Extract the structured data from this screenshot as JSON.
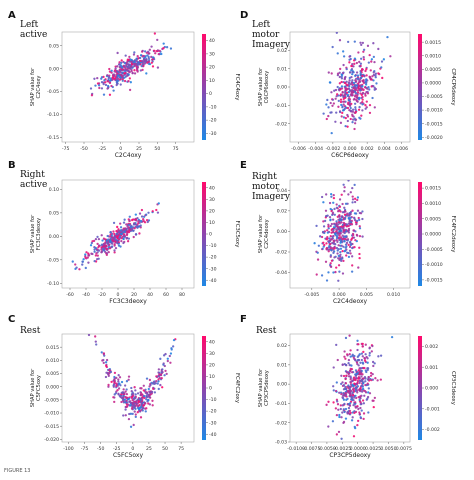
{
  "figure_footer": "FIGURE 13",
  "colormap": {
    "low": "#1e88e5",
    "mid": "#8e44ad",
    "high": "#ff0a6c"
  },
  "chart_data": [
    {
      "letter": "A",
      "title": [
        "Left",
        "active"
      ],
      "type": "scatter",
      "xlabel": "C2C4oxy",
      "ylabel": [
        "SHAP value for",
        "C2C4oxy"
      ],
      "clabel": "FC4C4oxy",
      "xlim": [
        -80,
        100
      ],
      "ylim": [
        -0.16,
        0.08
      ],
      "xticks": [
        -75,
        -50,
        -25,
        0,
        25,
        50,
        75
      ],
      "xtick_labels": [
        "-75",
        "-50",
        "-25",
        "0",
        "25",
        "50",
        "75"
      ],
      "yticks": [
        -0.15,
        -0.1,
        -0.05,
        0.0,
        0.05
      ],
      "ytick_labels": [
        "-0.15",
        "-0.10",
        "-0.05",
        "0.00",
        "0.05"
      ],
      "cticks": [
        40,
        30,
        20,
        10,
        0,
        -10,
        -20,
        -30
      ],
      "ctick_labels": [
        "40",
        "30",
        "20",
        "10",
        "0",
        "-10",
        "-20",
        "-30"
      ],
      "clim": [
        -35,
        45
      ],
      "cloud": {
        "xc": 10,
        "xs": 22,
        "slope": 0.0009,
        "yc": 0.0,
        "ys": 0.012,
        "n": 360,
        "seed": 1
      }
    },
    {
      "letter": "D",
      "title": [
        "Left",
        "motor",
        "Imagery"
      ],
      "type": "scatter",
      "xlabel": "C6CP6deoxy",
      "ylabel": [
        "SHAP value for",
        "C6CP6deoxy"
      ],
      "clabel": "CP4CP6deoxy",
      "xlim": [
        -0.007,
        0.007
      ],
      "ylim": [
        -0.03,
        0.03
      ],
      "xticks": [
        -0.006,
        -0.004,
        -0.002,
        0.0,
        0.002,
        0.004,
        0.006
      ],
      "xtick_labels": [
        "-0.006",
        "-0.004",
        "-0.002",
        "0.000",
        "0.002",
        "0.004",
        "0.006"
      ],
      "yticks": [
        -0.02,
        -0.01,
        0.0,
        0.01,
        0.02
      ],
      "ytick_labels": [
        "-0.02",
        "-0.01",
        "0.00",
        "0.01",
        "0.02"
      ],
      "cticks": [
        0.0015,
        0.001,
        0.0005,
        0.0,
        -0.0005,
        -0.001,
        -0.0015,
        -0.002
      ],
      "ctick_labels": [
        "0.0015",
        "0.0010",
        "0.0005",
        "0.0000",
        "-0.0005",
        "-0.0010",
        "-0.0015",
        "-0.0020"
      ],
      "clim": [
        -0.0021,
        0.0018
      ],
      "cloud": {
        "xc": 0.0005,
        "xs": 0.0013,
        "slope": 2.5,
        "yc": 0.0,
        "ys": 0.009,
        "n": 420,
        "seed": 2
      }
    },
    {
      "letter": "B",
      "title": [
        "Right",
        "active"
      ],
      "type": "scatter",
      "xlabel": "FC3C3deoxy",
      "ylabel": [
        "SHAP value for",
        "FC3C3deoxy"
      ],
      "clabel": "FC3C5oxy",
      "xlim": [
        -70,
        95
      ],
      "ylim": [
        -0.11,
        0.12
      ],
      "xticks": [
        -60,
        -40,
        -20,
        0,
        20,
        40,
        60,
        80
      ],
      "xtick_labels": [
        "-60",
        "-40",
        "-20",
        "0",
        "20",
        "40",
        "60",
        "80"
      ],
      "yticks": [
        -0.1,
        -0.05,
        0.0,
        0.05,
        0.1
      ],
      "ytick_labels": [
        "-0.10",
        "-0.05",
        "0.00",
        "0.05",
        "0.10"
      ],
      "cticks": [
        40,
        30,
        20,
        10,
        0,
        -10,
        -20,
        -30,
        -40
      ],
      "ctick_labels": [
        "40",
        "30",
        "20",
        "10",
        "0",
        "-10",
        "-20",
        "-30",
        "-40"
      ],
      "clim": [
        -45,
        45
      ],
      "cloud": {
        "xc": 0,
        "xs": 20,
        "slope": 0.0011,
        "yc": 0.0,
        "ys": 0.01,
        "n": 360,
        "seed": 3
      }
    },
    {
      "letter": "E",
      "title": [
        "Right",
        "motor",
        "Imagery"
      ],
      "type": "scatter",
      "xlabel": "C2C4deoxy",
      "ylabel": [
        "SHAP value for",
        "C2C4deoxy"
      ],
      "clabel": "FC4FC2deoxy",
      "xlim": [
        -0.009,
        0.013
      ],
      "ylim": [
        -0.055,
        0.05
      ],
      "xticks": [
        -0.005,
        0.0,
        0.005,
        0.01
      ],
      "xtick_labels": [
        "-0.005",
        "0.000",
        "0.005",
        "0.010"
      ],
      "yticks": [
        -0.04,
        -0.02,
        0.0,
        0.02,
        0.04
      ],
      "ytick_labels": [
        "-0.04",
        "-0.02",
        "0.00",
        "0.02",
        "0.04"
      ],
      "cticks": [
        0.0015,
        0.001,
        0.0005,
        0.0,
        -0.0005,
        -0.001,
        -0.0015
      ],
      "ctick_labels": [
        "0.0015",
        "0.0010",
        "0.0005",
        "0.0000",
        "-0.0005",
        "-0.0010",
        "-0.0015"
      ],
      "clim": [
        -0.0017,
        0.0017
      ],
      "cloud": {
        "xc": 0.0002,
        "xs": 0.0017,
        "slope": 3.0,
        "yc": 0.0,
        "ys": 0.016,
        "n": 420,
        "seed": 4
      }
    },
    {
      "letter": "C",
      "title": [
        "Rest"
      ],
      "type": "scatter",
      "xlabel": "C5FC5oxy",
      "ylabel": [
        "SHAP value for",
        "C5FC5oxy"
      ],
      "clabel": "FC4FC2oxy",
      "xlim": [
        -110,
        95
      ],
      "ylim": [
        -0.021,
        0.02
      ],
      "xticks": [
        -100,
        -75,
        -50,
        -25,
        0,
        25,
        50,
        75
      ],
      "xtick_labels": [
        "-100",
        "-75",
        "-50",
        "-25",
        "0",
        "25",
        "50",
        "75"
      ],
      "yticks": [
        -0.02,
        -0.015,
        -0.01,
        -0.005,
        0.0,
        0.005,
        0.01,
        0.015
      ],
      "ytick_labels": [
        "-0.020",
        "-0.015",
        "-0.010",
        "-0.005",
        "0.000",
        "0.005",
        "0.010",
        "0.015"
      ],
      "cticks": [
        40,
        30,
        20,
        10,
        0,
        -10,
        -20,
        -30,
        -40
      ],
      "ctick_labels": [
        "40",
        "30",
        "20",
        "10",
        "0",
        "-10",
        "-20",
        "-30",
        "-40"
      ],
      "clim": [
        -45,
        45
      ],
      "cloud": {
        "xc": 5,
        "xs": 30,
        "quad": 1.1e-06,
        "slope": 1e-05,
        "yc": -0.006,
        "ys": 0.0025,
        "n": 380,
        "seed": 5
      }
    },
    {
      "letter": "F",
      "title": [
        "Rest"
      ],
      "type": "scatter",
      "xlabel": "CP3CP5deoxy",
      "ylabel": [
        "SHAP value for",
        "CP3CP5deoxy"
      ],
      "clabel": "CP3C3deoxy",
      "xlim": [
        -0.011,
        0.0085
      ],
      "ylim": [
        -0.03,
        0.026
      ],
      "xticks": [
        -0.01,
        -0.0075,
        -0.005,
        -0.0025,
        0.0,
        0.0025,
        0.005,
        0.0075
      ],
      "xtick_labels": [
        "-0.0100",
        "-0.0075",
        "-0.0050",
        "-0.0025",
        "0.0000",
        "0.0025",
        "0.0050",
        "0.0075"
      ],
      "yticks": [
        -0.03,
        -0.02,
        -0.01,
        0.0,
        0.01,
        0.02
      ],
      "ytick_labels": [
        "-0.03",
        "-0.02",
        "-0.01",
        "0.00",
        "0.01",
        "0.02"
      ],
      "cticks": [
        0.002,
        0.001,
        0.0,
        -0.001,
        -0.002
      ],
      "ctick_labels": [
        "0.002",
        "0.001",
        "0.000",
        "-0.001",
        "-0.002"
      ],
      "clim": [
        -0.0025,
        0.0025
      ],
      "cloud": {
        "xc": -0.0005,
        "xs": 0.0016,
        "slope": 2.5,
        "yc": 0.0,
        "ys": 0.01,
        "n": 420,
        "seed": 6
      }
    }
  ]
}
